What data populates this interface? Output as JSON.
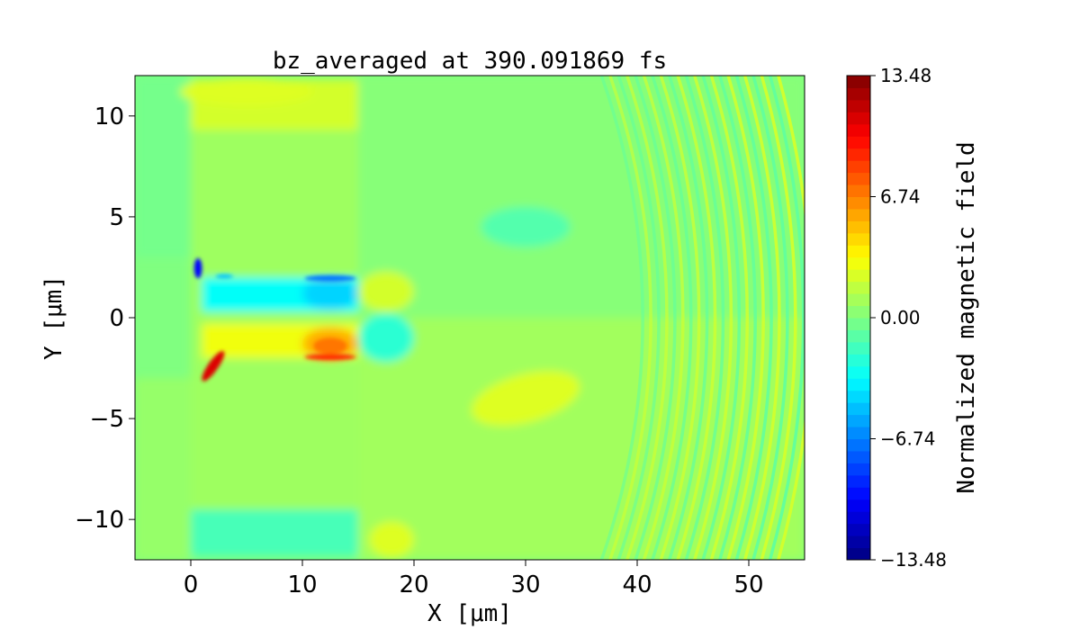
{
  "chart_data": {
    "type": "heatmap",
    "title": "bz_averaged at 390.091869 fs",
    "xlabel": "X [μm]",
    "ylabel": "Y [μm]",
    "xlim": [
      -5,
      55
    ],
    "ylim": [
      -12,
      12
    ],
    "xticks": [
      0,
      10,
      20,
      30,
      40,
      50
    ],
    "xtick_labels": [
      "0",
      "10",
      "20",
      "30",
      "40",
      "50"
    ],
    "yticks": [
      10,
      5,
      0,
      -5,
      -10
    ],
    "ytick_labels": [
      "10",
      "5",
      "0",
      "−5",
      "−10"
    ],
    "colormap": "jet",
    "colorbar": {
      "label": "Normalized magnetic field",
      "range": [
        -13.48,
        13.48
      ],
      "ticks": [
        13.48,
        6.74,
        0.0,
        -6.74,
        -13.48
      ],
      "tick_labels": [
        "13.48",
        "6.74",
        "0.00",
        "−6.74",
        "−13.48"
      ],
      "levels": 40
    },
    "grid": false
  }
}
